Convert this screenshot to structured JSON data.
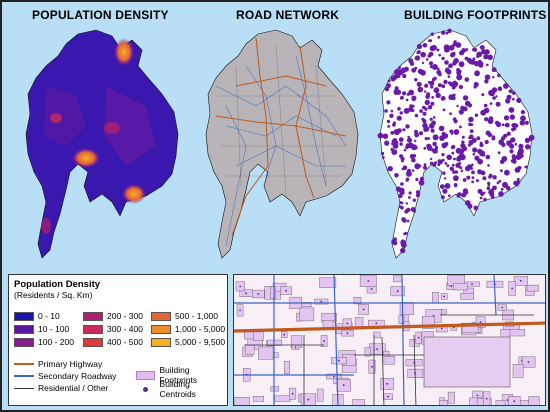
{
  "titles": {
    "population": "POPULATION DENSITY",
    "roads": "ROAD NETWORK",
    "buildings": "BUILDING FOOTPRINTS"
  },
  "legend": {
    "title": "Population Density",
    "subtitle": "(Residents / Sq. Km)",
    "classes": [
      {
        "label": "0 - 10",
        "color": "#1a16a8"
      },
      {
        "label": "10 - 100",
        "color": "#5a18a0"
      },
      {
        "label": "100 - 200",
        "color": "#8a1a8e"
      },
      {
        "label": "200 - 300",
        "color": "#b0206f"
      },
      {
        "label": "300 - 400",
        "color": "#c82d5a"
      },
      {
        "label": "400 - 500",
        "color": "#e03a3a"
      },
      {
        "label": "500 - 1,000",
        "color": "#e4643a"
      },
      {
        "label": "1,000 - 5,000",
        "color": "#ef8c2e"
      },
      {
        "label": "5,000 - 9,500",
        "color": "#f6b21e"
      }
    ],
    "roads": [
      {
        "label": "Primary Highway",
        "color": "#c05a1e"
      },
      {
        "label": "Secondary Roadway",
        "color": "#3a64c8"
      },
      {
        "label": "Residential / Other",
        "color": "#333333"
      }
    ],
    "buildings": [
      {
        "label": "Building Footprints",
        "color": "#e4bdf0"
      },
      {
        "label": "Building Centroids",
        "color": "#5a2a8e"
      }
    ]
  }
}
